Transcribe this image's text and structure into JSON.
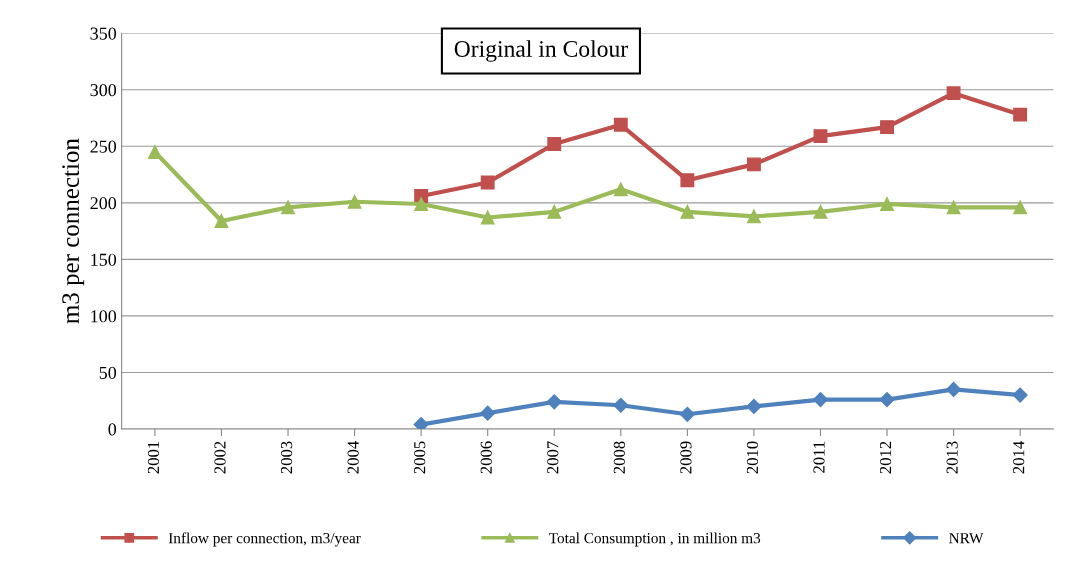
{
  "chart_data": {
    "type": "line",
    "ylabel": "m3 per connection",
    "annotations": [
      "Original in Colour"
    ],
    "categories": [
      "2001",
      "2002",
      "2003",
      "2004",
      "2005",
      "2006",
      "2007",
      "2008",
      "2009",
      "2010",
      "2011",
      "2012",
      "2013",
      "2014"
    ],
    "series": [
      {
        "name": "Inflow per connection, m3/year",
        "color": "#c0504d",
        "marker": "square",
        "values": [
          null,
          null,
          null,
          null,
          206,
          218,
          252,
          269,
          220,
          234,
          259,
          267,
          297,
          278
        ]
      },
      {
        "name": "Total Consumption , in million m3",
        "color": "#9bbb59",
        "marker": "triangle",
        "values": [
          245,
          184,
          196,
          201,
          199,
          187,
          192,
          212,
          192,
          188,
          192,
          199,
          196,
          196
        ]
      },
      {
        "name": "NRW",
        "color": "#4f81bd",
        "marker": "diamond",
        "values": [
          null,
          null,
          null,
          null,
          4,
          14,
          24,
          21,
          13,
          20,
          26,
          26,
          35,
          30
        ]
      }
    ],
    "ylim": [
      0,
      350
    ],
    "yticks": [
      0,
      50,
      100,
      150,
      200,
      250,
      300,
      350
    ],
    "grid": "y",
    "legend": "bottom"
  }
}
